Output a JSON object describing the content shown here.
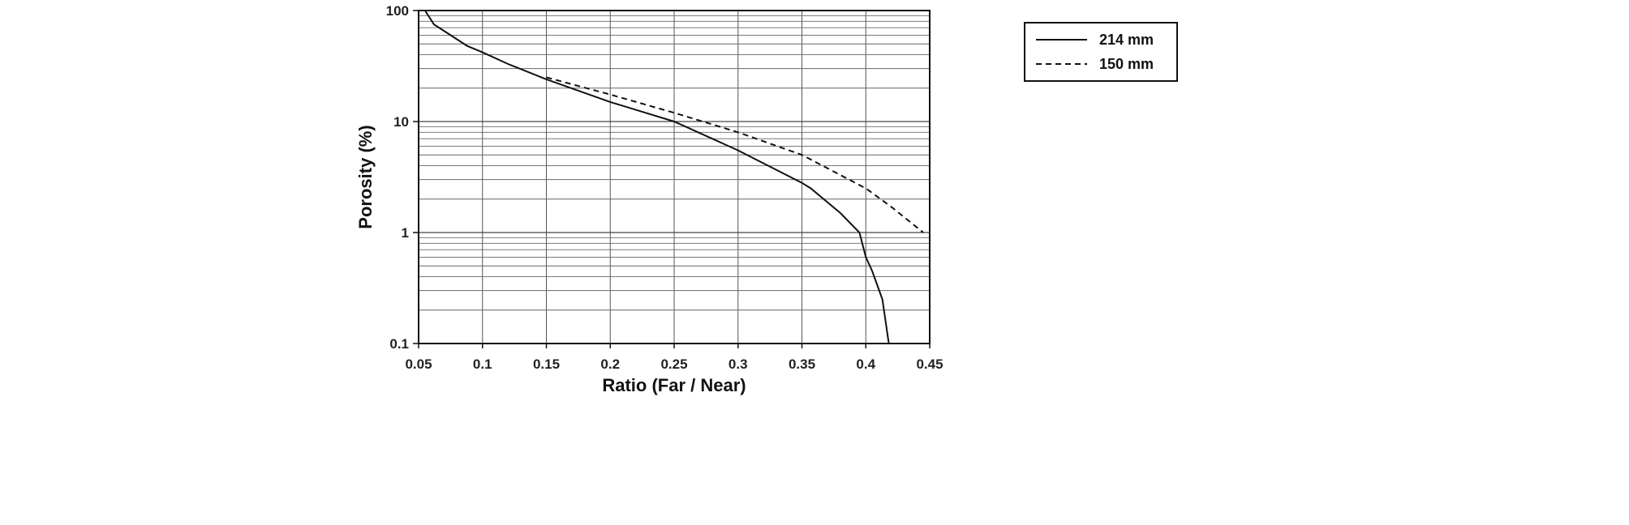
{
  "chart_data": {
    "type": "line",
    "title": "",
    "xlabel": "Ratio (Far / Near)",
    "ylabel": "Porosity (%)",
    "xlim": [
      0.05,
      0.45
    ],
    "ylim": [
      0.1,
      100
    ],
    "yscale": "log",
    "grid": true,
    "legend_position": "top-right",
    "x_ticks": [
      "0.05",
      "0.1",
      "0.15",
      "0.2",
      "0.25",
      "0.3",
      "0.35",
      "0.4",
      "0.45"
    ],
    "y_ticks": [
      "0.1",
      "1",
      "10",
      "100"
    ],
    "series": [
      {
        "name": "214 mm",
        "style": "solid",
        "color": "#111111",
        "x": [
          0.055,
          0.062,
          0.075,
          0.088,
          0.1,
          0.12,
          0.15,
          0.2,
          0.25,
          0.3,
          0.35,
          0.357,
          0.38,
          0.395,
          0.4,
          0.405,
          0.413,
          0.418
        ],
        "y": [
          100,
          75,
          60,
          48,
          42,
          33,
          24,
          15,
          10,
          5.5,
          2.8,
          2.5,
          1.5,
          1.0,
          0.6,
          0.45,
          0.25,
          0.1
        ]
      },
      {
        "name": "150 mm",
        "style": "dashed",
        "color": "#111111",
        "x": [
          0.15,
          0.2,
          0.25,
          0.3,
          0.35,
          0.4,
          0.42,
          0.445
        ],
        "y": [
          25,
          17.5,
          12,
          8,
          5,
          2.5,
          1.7,
          1.0
        ]
      }
    ]
  }
}
